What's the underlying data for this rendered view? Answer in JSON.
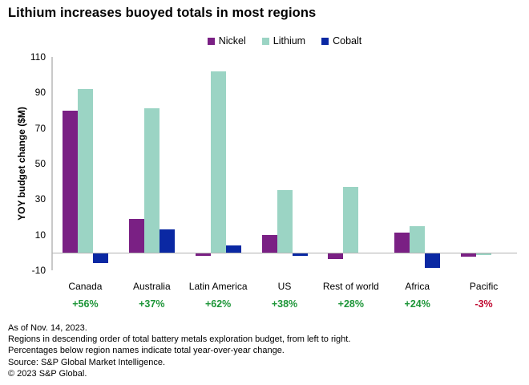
{
  "title": "Lithium increases buoyed totals in most regions",
  "chart_data": {
    "type": "bar",
    "title": "Lithium increases buoyed totals in most regions",
    "ylabel": "YOY budget change ($M)",
    "xlabel": "",
    "ylim": [
      -10,
      110
    ],
    "yticks": [
      -10,
      10,
      30,
      50,
      70,
      90,
      110
    ],
    "grid": false,
    "legend_position": "top",
    "categories": [
      "Canada",
      "Australia",
      "Latin America",
      "US",
      "Rest of world",
      "Africa",
      "Pacific"
    ],
    "category_pct": [
      "+56%",
      "+37%",
      "+62%",
      "+38%",
      "+28%",
      "+24%",
      "-3%"
    ],
    "series": [
      {
        "name": "Nickel",
        "color": "#7A2084",
        "values": [
          80,
          19,
          -1,
          10,
          -3,
          11,
          -1.5
        ]
      },
      {
        "name": "Lithium",
        "color": "#9BD4C4",
        "values": [
          92,
          81,
          102,
          35,
          37,
          15,
          -0.5
        ]
      },
      {
        "name": "Cobalt",
        "color": "#0A28A3",
        "values": [
          -5,
          13,
          4,
          -1,
          0,
          -8,
          0
        ]
      }
    ]
  },
  "colors": {
    "positive_pct": "#1E9639",
    "negative_pct": "#C00A31",
    "axis_line": "#C9C9C9",
    "zero_line": "#B3B3B3"
  },
  "footnotes": [
    "As of Nov. 14, 2023.",
    "Regions in descending order of total battery metals exploration budget, from left to right.",
    "Percentages below region names indicate total year-over-year change.",
    "Source: S&P Global Market Intelligence.",
    "© 2023 S&P Global."
  ]
}
